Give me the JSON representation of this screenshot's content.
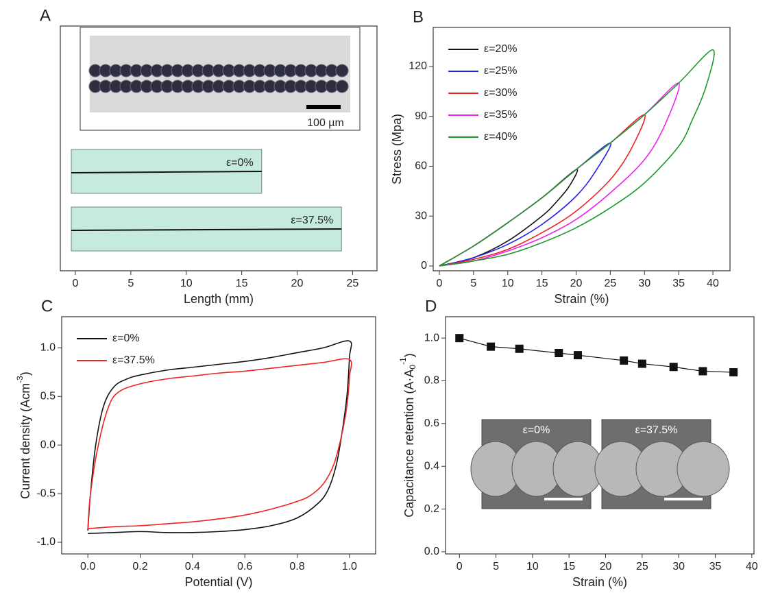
{
  "chart_data": [
    {
      "type": "strip",
      "label": "A",
      "xlabel": "Length (mm)",
      "xlim": [
        -1.36,
        27.2
      ],
      "xticks": [
        0,
        5,
        10,
        15,
        20,
        25
      ],
      "scale_bar_label": "100 µm",
      "color": "#c6eadc",
      "samples": [
        {
          "name": "ε=0%",
          "length": 16.8
        },
        {
          "name": "ε=37.5%",
          "length": 24
        }
      ]
    },
    {
      "type": "line",
      "label": "B",
      "xlabel": "Strain (%)",
      "ylabel": "Stress (Mpa)",
      "xlim": [
        -0.9,
        42.5
      ],
      "ylim": [
        -2.9,
        143.5
      ],
      "xticks": [
        0,
        5,
        10,
        15,
        20,
        25,
        30,
        35,
        40
      ],
      "yticks": [
        0,
        30,
        60,
        90,
        120
      ],
      "legend": "upper left",
      "series": [
        {
          "name": "ε=20%",
          "color": "#111111",
          "x": [
            0,
            5,
            10,
            15,
            20,
            19,
            17,
            15,
            10,
            5,
            0
          ],
          "values": [
            0,
            12,
            26,
            41,
            58,
            48,
            38,
            30,
            15,
            5,
            0
          ]
        },
        {
          "name": "ε=25%",
          "color": "#2222ee",
          "x": [
            0,
            5,
            10,
            15,
            20,
            25,
            23,
            20,
            15,
            10,
            5,
            0
          ],
          "values": [
            0,
            12,
            26,
            41,
            58,
            74,
            58,
            42,
            25,
            13,
            5,
            0
          ]
        },
        {
          "name": "ε=30%",
          "color": "#ee2222",
          "x": [
            0,
            5,
            10,
            15,
            20,
            25,
            30,
            28,
            25,
            20,
            15,
            10,
            5,
            0
          ],
          "values": [
            0,
            12,
            26,
            41,
            58,
            74,
            91,
            70,
            52,
            33,
            20,
            10,
            4,
            0
          ]
        },
        {
          "name": "ε=35%",
          "color": "#ee22ee",
          "x": [
            0,
            5,
            10,
            15,
            20,
            25,
            30,
            35,
            33,
            30,
            25,
            20,
            15,
            10,
            5,
            0
          ],
          "values": [
            0,
            12,
            26,
            41,
            58,
            74,
            91,
            110,
            85,
            64,
            44,
            28,
            17,
            9,
            3,
            0
          ]
        },
        {
          "name": "ε=40%",
          "color": "#1a9a2a",
          "x": [
            0,
            5,
            10,
            15,
            20,
            25,
            30,
            35,
            40,
            39,
            37,
            35,
            30,
            25,
            20,
            15,
            10,
            5,
            0
          ],
          "values": [
            0,
            12,
            26,
            41,
            58,
            74,
            91,
            110,
            130,
            108,
            88,
            72,
            50,
            35,
            23,
            14,
            7,
            3,
            0
          ]
        }
      ]
    },
    {
      "type": "line",
      "label": "C",
      "xlabel": "Potential (V)",
      "ylabel": "Current density (Acm",
      "ylabel_sup": "-3",
      "ylabel_end": ")",
      "xlim": [
        -0.1,
        1.1
      ],
      "ylim": [
        -1.12,
        1.32
      ],
      "xticks": [
        {
          "value": 0,
          "label": "0.0"
        },
        0.2,
        0.4,
        0.6,
        0.8,
        {
          "value": 1,
          "label": "1.0"
        }
      ],
      "yticks": [
        {
          "value": -1,
          "label": "-1.0"
        },
        -0.5,
        {
          "value": 0,
          "label": "0.0"
        },
        0.5,
        {
          "value": 1,
          "label": "1.0"
        }
      ],
      "legend": "upper left",
      "series": [
        {
          "name": "ε=0%",
          "color": "#111111",
          "x": [
            0,
            0.01,
            0.03,
            0.06,
            0.1,
            0.15,
            0.2,
            0.3,
            0.4,
            0.5,
            0.6,
            0.7,
            0.8,
            0.9,
            1.0,
            1.0,
            0.99,
            0.97,
            0.95,
            0.92,
            0.88,
            0.8,
            0.7,
            0.6,
            0.5,
            0.4,
            0.3,
            0.2,
            0.1,
            0
          ],
          "values": [
            -0.88,
            -0.5,
            0,
            0.4,
            0.6,
            0.68,
            0.72,
            0.77,
            0.8,
            0.83,
            0.86,
            0.9,
            0.95,
            1.0,
            1.07,
            0.9,
            0.5,
            0.1,
            -0.2,
            -0.45,
            -0.6,
            -0.75,
            -0.83,
            -0.87,
            -0.89,
            -0.9,
            -0.9,
            -0.89,
            -0.9,
            -0.91
          ]
        },
        {
          "name": "ε=37.5%",
          "color": "#ee2222",
          "x": [
            0,
            0.01,
            0.04,
            0.08,
            0.12,
            0.2,
            0.3,
            0.4,
            0.5,
            0.6,
            0.7,
            0.8,
            0.9,
            1.0,
            1.0,
            0.99,
            0.97,
            0.94,
            0.9,
            0.85,
            0.8,
            0.7,
            0.6,
            0.5,
            0.4,
            0.3,
            0.2,
            0.1,
            0
          ],
          "values": [
            -0.86,
            -0.5,
            0,
            0.4,
            0.55,
            0.63,
            0.68,
            0.71,
            0.74,
            0.76,
            0.79,
            0.82,
            0.85,
            0.88,
            0.7,
            0.4,
            0.1,
            -0.2,
            -0.4,
            -0.52,
            -0.58,
            -0.66,
            -0.72,
            -0.76,
            -0.79,
            -0.81,
            -0.83,
            -0.84,
            -0.86
          ]
        }
      ]
    },
    {
      "type": "scatter",
      "label": "D",
      "xlabel": "Strain (%)",
      "ylabel": "Capacitance retention (A·A",
      "ylabel_sub": "0",
      "ylabel_sup": "-1",
      "ylabel_end": ")",
      "xlim": [
        -1.9,
        40.3
      ],
      "ylim": [
        -0.01,
        1.1
      ],
      "xticks": [
        0,
        5,
        10,
        15,
        20,
        25,
        30,
        35,
        40
      ],
      "yticks": [
        {
          "value": 0,
          "label": "0.0"
        },
        0.2,
        0.4,
        0.6,
        0.8,
        {
          "value": 1,
          "label": "1.0"
        }
      ],
      "color": "#111111",
      "connect": true,
      "x": [
        0,
        4.3,
        8.2,
        13.6,
        16.2,
        22.5,
        25,
        29.3,
        33.3,
        37.5
      ],
      "values": [
        1.0,
        0.96,
        0.95,
        0.93,
        0.92,
        0.895,
        0.88,
        0.865,
        0.845,
        0.84
      ],
      "insets": [
        "ε=0%",
        "ε=37.5%"
      ]
    }
  ]
}
